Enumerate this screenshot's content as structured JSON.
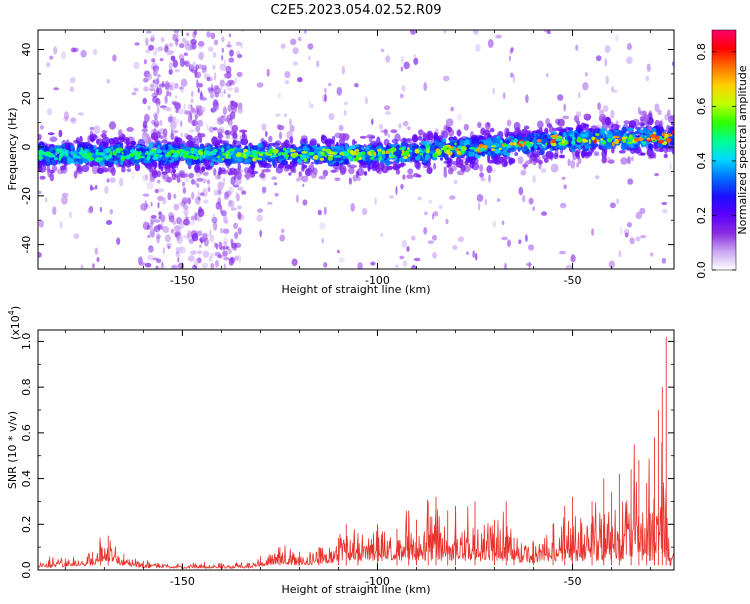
{
  "page_title": "C2E5.2023.054.02.52.R09",
  "chart_data": [
    {
      "id": "spectrogram",
      "type": "heatmap",
      "xlabel": "Height of straight line (km)",
      "ylabel": "Frequency (Hz)",
      "xlim": [
        -187,
        -24
      ],
      "ylim": [
        -50,
        48
      ],
      "x_ticks": [
        -150,
        -100,
        -50
      ],
      "x_tick_labels": [
        "-150",
        "-100",
        "-50"
      ],
      "y_ticks": [
        -40,
        -20,
        0,
        20,
        40
      ],
      "y_tick_labels": [
        "-40",
        "-20",
        "0",
        "20",
        "40"
      ],
      "ridge": {
        "x": [
          -187,
          -150,
          -100,
          -70,
          -50,
          -24
        ],
        "frequency_hz": [
          -3,
          -3,
          -3,
          0,
          3,
          4
        ]
      },
      "colorbar": {
        "label": "Normalized spectral amplitude",
        "range": [
          0,
          0.88
        ],
        "ticks": [
          0,
          0.2,
          0.4,
          0.6,
          0.8
        ],
        "tick_labels": [
          "0.0",
          "0.2",
          "0.4",
          "0.6",
          "0.8"
        ],
        "colors": [
          "#ffffff",
          "#c9a6f2",
          "#8a2be2",
          "#5a00ff",
          "#1a10ff",
          "#0070ff",
          "#00d8ff",
          "#00ff90",
          "#30ff00",
          "#c0ff00",
          "#ffd000",
          "#ff7000",
          "#ff0000",
          "#ff0070"
        ]
      },
      "grid": false
    },
    {
      "id": "snr",
      "type": "line",
      "xlabel": "Height of straight line (km)",
      "ylabel": "SNR (10 * v/v)",
      "y_multiplier_label": "(x10",
      "y_multiplier_exp": "4",
      "y_multiplier_close": ")",
      "xlim": [
        -187,
        -24
      ],
      "ylim": [
        0,
        1.05
      ],
      "x_ticks": [
        -150,
        -100,
        -50
      ],
      "x_tick_labels": [
        "-150",
        "-100",
        "-50"
      ],
      "y_ticks": [
        0,
        0.2,
        0.4,
        0.6,
        0.8,
        1.0
      ],
      "y_tick_labels": [
        "0.0",
        "0.2",
        "0.4",
        "0.6",
        "0.8",
        "1.0"
      ],
      "color": "#e8332c",
      "series": [
        {
          "x": [
            -187,
            -180,
            -173,
            -171,
            -169,
            -165,
            -160,
            -150,
            -140,
            -133,
            -130,
            -125,
            -120,
            -115,
            -110,
            -108,
            -105,
            -100,
            -95,
            -92,
            -90,
            -87,
            -85,
            -82,
            -80,
            -75,
            -70,
            -67,
            -65,
            -60,
            -55,
            -52,
            -50,
            -45,
            -42,
            -40,
            -38,
            -35,
            -33,
            -31,
            -29,
            -28,
            -27,
            -26,
            -25,
            -24
          ],
          "y": [
            0.04,
            0.05,
            0.08,
            0.12,
            0.15,
            0.07,
            0.04,
            0.03,
            0.03,
            0.03,
            0.06,
            0.1,
            0.08,
            0.1,
            0.14,
            0.2,
            0.16,
            0.2,
            0.18,
            0.26,
            0.22,
            0.3,
            0.32,
            0.26,
            0.28,
            0.3,
            0.22,
            0.3,
            0.14,
            0.12,
            0.2,
            0.28,
            0.32,
            0.3,
            0.4,
            0.34,
            0.42,
            0.44,
            0.48,
            0.38,
            0.58,
            0.7,
            0.8,
            1.02,
            0.05,
            0.2
          ]
        }
      ],
      "grid": false
    }
  ]
}
